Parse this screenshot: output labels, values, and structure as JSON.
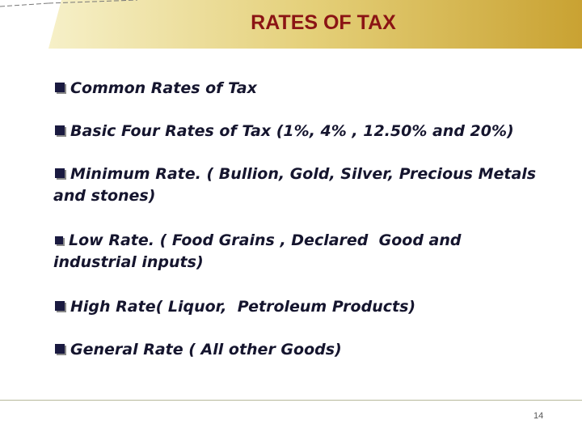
{
  "header": {
    "title": "RATES OF TAX"
  },
  "bullets": [
    [
      "Common Rates of Tax"
    ],
    [
      "Basic Four Rates of Tax (1%, 4% , 12.50% and 20%)"
    ],
    [
      "Minimum Rate. ( Bullion, Gold, Silver, Precious Metals",
      "and stones)"
    ],
    [
      "Low Rate. ( Food Grains , Declared  Good and",
      "industrial inputs)"
    ],
    [
      "High Rate( Liquor,  Petroleum Products)"
    ],
    [
      "General Rate ( All other Goods)"
    ]
  ],
  "footer": {
    "page_number": "14"
  }
}
